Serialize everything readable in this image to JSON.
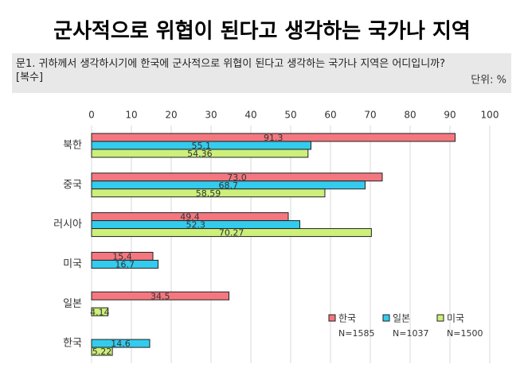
{
  "chart_data": {
    "type": "bar",
    "orientation": "horizontal",
    "title": "군사적으로 위협이 된다고 생각하는 국가나 지역",
    "subtitle": "문1. 귀하께서 생각하시기에 한국에 군사적으로 위협이 된다고 생각하는 국가나 지역은 어디입니까? [복수]",
    "unit": "단위: %",
    "categories": [
      "북한",
      "중국",
      "러시아",
      "미국",
      "일본",
      "한국"
    ],
    "series": [
      {
        "name": "한국",
        "sample": "N=1585",
        "color": "#f4777f",
        "values": [
          91.3,
          73.0,
          49.4,
          15.4,
          34.5,
          null
        ],
        "value_labels": [
          "91.3",
          "73.0",
          "49.4",
          "15.4",
          "34.5",
          null
        ]
      },
      {
        "name": "일본",
        "sample": "N=1037",
        "color": "#33ccee",
        "values": [
          55.1,
          68.7,
          52.3,
          16.7,
          null,
          14.6
        ],
        "value_labels": [
          "55.1",
          "68.7",
          "52.3",
          "16.7",
          null,
          "14.6"
        ]
      },
      {
        "name": "미국",
        "sample": "N=1500",
        "color": "#ccf07a",
        "values": [
          54.36,
          58.59,
          70.27,
          null,
          4.14,
          5.22
        ],
        "value_labels": [
          "54.36",
          "58.59",
          "70.27",
          null,
          "4.14",
          "5.22"
        ]
      }
    ],
    "xlim": [
      0,
      100
    ],
    "xticks": [
      0,
      10,
      20,
      30,
      40,
      50,
      60,
      70,
      80,
      90,
      100
    ],
    "grid": true,
    "legend": "lower right"
  }
}
